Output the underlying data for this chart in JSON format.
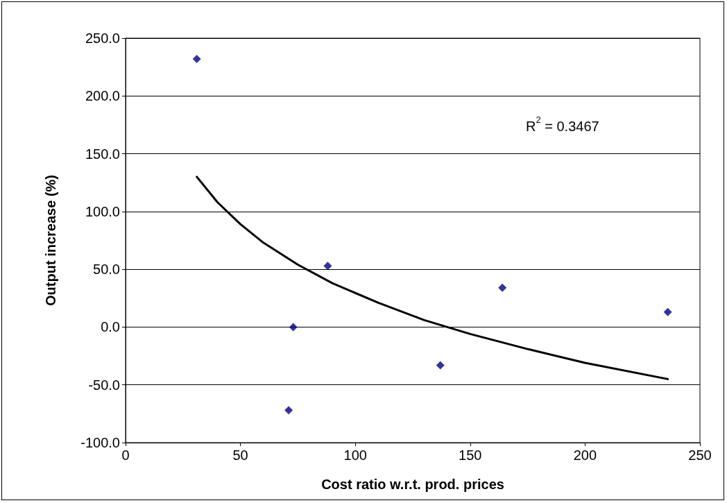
{
  "chart_data": {
    "type": "scatter",
    "xlabel": "Cost ratio w.r.t. prod. prices",
    "ylabel": "Output increase (%)",
    "xlim": [
      0,
      250
    ],
    "xticks": [
      0,
      50,
      100,
      150,
      200,
      250
    ],
    "ylim": [
      -100,
      250
    ],
    "yticks": [
      {
        "value": -100,
        "label": "-100.0"
      },
      {
        "value": -50,
        "label": "-50.0"
      },
      {
        "value": 0,
        "label": "0.0"
      },
      {
        "value": 50,
        "label": "50.0"
      },
      {
        "value": 100,
        "label": "100.0"
      },
      {
        "value": 150,
        "label": "150.0"
      },
      {
        "value": 200,
        "label": "200.0"
      },
      {
        "value": 250,
        "label": "250.0"
      }
    ],
    "grid": "y",
    "annotations": [
      "R$^{2}$ = 0.3467"
    ],
    "series": [
      {
        "color": "#000080",
        "marker": "diamond",
        "x": [
          31,
          73,
          71,
          88,
          137,
          164,
          236
        ],
        "values": [
          232,
          0,
          -72,
          53,
          -33,
          34,
          13
        ]
      },
      {
        "type": "line",
        "color": "#000000",
        "line_style": "solid",
        "x": [
          31,
          40,
          50,
          60,
          75,
          90,
          110,
          130,
          150,
          175,
          200,
          236
        ],
        "values": [
          130,
          108,
          89,
          73,
          54,
          38,
          21,
          6,
          -6,
          -19,
          -31,
          -45
        ]
      }
    ]
  }
}
